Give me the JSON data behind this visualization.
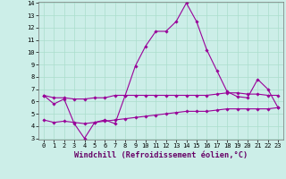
{
  "xlabel": "Windchill (Refroidissement éolien,°C)",
  "x": [
    0,
    1,
    2,
    3,
    4,
    5,
    6,
    7,
    8,
    9,
    10,
    11,
    12,
    13,
    14,
    15,
    16,
    17,
    18,
    19,
    20,
    21,
    22,
    23
  ],
  "line1": [
    6.5,
    5.8,
    6.2,
    4.2,
    3.0,
    4.3,
    4.5,
    4.2,
    6.5,
    8.9,
    10.5,
    11.7,
    11.7,
    12.5,
    14.0,
    12.5,
    10.2,
    8.5,
    6.8,
    6.4,
    6.3,
    7.8,
    7.0,
    5.5
  ],
  "line2": [
    6.5,
    6.3,
    6.3,
    6.2,
    6.2,
    6.3,
    6.3,
    6.5,
    6.5,
    6.5,
    6.5,
    6.5,
    6.5,
    6.5,
    6.5,
    6.5,
    6.5,
    6.6,
    6.7,
    6.7,
    6.6,
    6.6,
    6.5,
    6.5
  ],
  "line3": [
    4.5,
    4.3,
    4.4,
    4.3,
    4.2,
    4.3,
    4.4,
    4.5,
    4.6,
    4.7,
    4.8,
    4.9,
    5.0,
    5.1,
    5.2,
    5.2,
    5.2,
    5.3,
    5.4,
    5.4,
    5.4,
    5.4,
    5.4,
    5.5
  ],
  "line_color": "#990099",
  "bg_color": "#cceee8",
  "grid_color": "#aaddcc",
  "ylim": [
    3,
    14
  ],
  "xlim": [
    -0.5,
    23.5
  ],
  "yticks": [
    3,
    4,
    5,
    6,
    7,
    8,
    9,
    10,
    11,
    12,
    13,
    14
  ],
  "xticks": [
    0,
    1,
    2,
    3,
    4,
    5,
    6,
    7,
    8,
    9,
    10,
    11,
    12,
    13,
    14,
    15,
    16,
    17,
    18,
    19,
    20,
    21,
    22,
    23
  ],
  "tick_fontsize": 5.0,
  "xlabel_fontsize": 6.2,
  "marker": "D",
  "marker_size": 1.8,
  "lw": 0.8
}
